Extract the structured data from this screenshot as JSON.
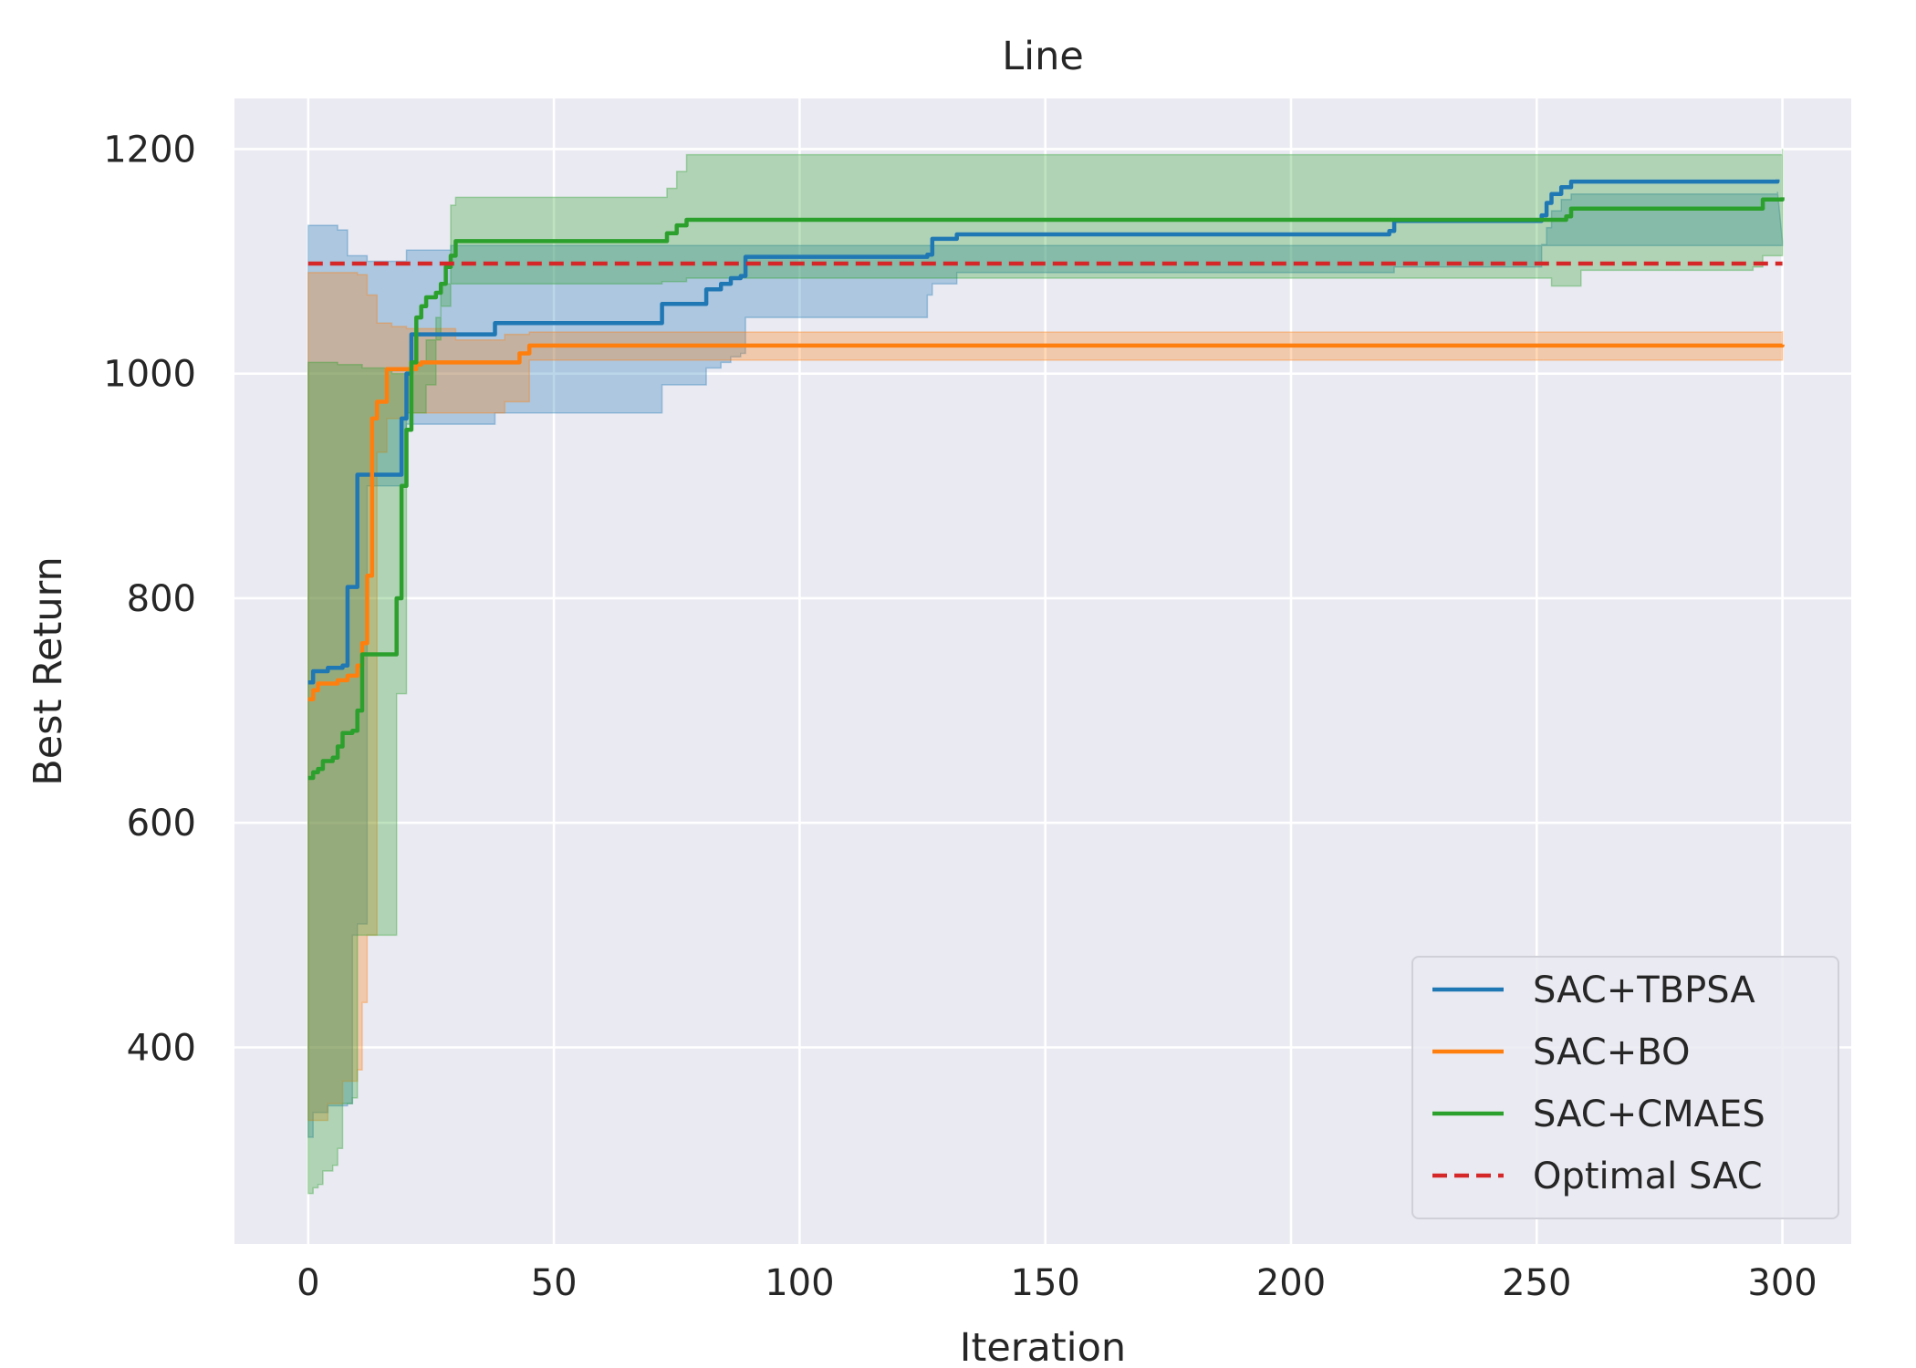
{
  "chart_data": {
    "type": "line",
    "title": "Line",
    "xlabel": "Iteration",
    "ylabel": "Best Return",
    "xlim": [
      -15,
      314
    ],
    "ylim": [
      225,
      1245
    ],
    "x_ticks": [
      0,
      50,
      100,
      150,
      200,
      250,
      300
    ],
    "y_ticks": [
      400,
      600,
      800,
      1000,
      1200
    ],
    "x_tick_labels": [
      "0",
      "50",
      "100",
      "150",
      "200",
      "250",
      "300"
    ],
    "y_tick_labels": [
      "400",
      "600",
      "800",
      "1000",
      "1200"
    ],
    "grid": true,
    "legend_position": "lower-right",
    "background_color": "#eaeaf2",
    "series": [
      {
        "name": "SAC+TBPSA",
        "color": "#1f77b4",
        "style": "solid",
        "mean": [
          [
            0,
            725
          ],
          [
            1,
            735
          ],
          [
            4,
            738
          ],
          [
            7,
            740
          ],
          [
            8,
            810
          ],
          [
            10,
            812
          ],
          [
            10,
            910
          ],
          [
            18,
            910
          ],
          [
            19,
            960
          ],
          [
            20,
            1000
          ],
          [
            21,
            1035
          ],
          [
            36,
            1035
          ],
          [
            38,
            1045
          ],
          [
            71,
            1045
          ],
          [
            72,
            1062
          ],
          [
            80,
            1062
          ],
          [
            81,
            1075
          ],
          [
            84,
            1080
          ],
          [
            86,
            1085
          ],
          [
            88,
            1087
          ],
          [
            89,
            1104
          ],
          [
            126,
            1106
          ],
          [
            127,
            1120
          ],
          [
            131,
            1120
          ],
          [
            132,
            1124
          ],
          [
            220,
            1127
          ],
          [
            221,
            1136
          ],
          [
            251,
            1141
          ],
          [
            252,
            1152
          ],
          [
            253,
            1160
          ],
          [
            255,
            1166
          ],
          [
            257,
            1171
          ],
          [
            299,
            1173
          ]
        ],
        "upper": [
          [
            0,
            1132
          ],
          [
            6,
            1128
          ],
          [
            8,
            1105
          ],
          [
            12,
            1100
          ],
          [
            18,
            1100
          ],
          [
            20,
            1110
          ],
          [
            28,
            1110
          ],
          [
            29,
            1114
          ],
          [
            300,
            1118
          ]
        ],
        "lower": [
          [
            0,
            320
          ],
          [
            1,
            342
          ],
          [
            4,
            348
          ],
          [
            8,
            350
          ],
          [
            9,
            500
          ],
          [
            10,
            510
          ],
          [
            12,
            900
          ],
          [
            20,
            955
          ],
          [
            36,
            955
          ],
          [
            38,
            965
          ],
          [
            71,
            965
          ],
          [
            72,
            990
          ],
          [
            80,
            990
          ],
          [
            81,
            1005
          ],
          [
            84,
            1010
          ],
          [
            86,
            1015
          ],
          [
            88,
            1018
          ],
          [
            89,
            1050
          ],
          [
            126,
            1070
          ],
          [
            127,
            1080
          ],
          [
            131,
            1080
          ],
          [
            132,
            1090
          ],
          [
            220,
            1090
          ],
          [
            221,
            1095
          ],
          [
            251,
            1115
          ],
          [
            252,
            1130
          ],
          [
            253,
            1145
          ],
          [
            255,
            1155
          ],
          [
            257,
            1160
          ],
          [
            299,
            1162
          ]
        ]
      },
      {
        "name": "SAC+BO",
        "color": "#ff7f0e",
        "style": "solid",
        "mean": [
          [
            0,
            710
          ],
          [
            1,
            718
          ],
          [
            2,
            724
          ],
          [
            6,
            727
          ],
          [
            8,
            731
          ],
          [
            10,
            740
          ],
          [
            11,
            760
          ],
          [
            12,
            820
          ],
          [
            13,
            960
          ],
          [
            14,
            975
          ],
          [
            16,
            1004
          ],
          [
            21,
            1004
          ],
          [
            22,
            1008
          ],
          [
            23,
            1010
          ],
          [
            42,
            1010
          ],
          [
            43,
            1018
          ],
          [
            45,
            1025
          ],
          [
            300,
            1026
          ]
        ],
        "upper": [
          [
            0,
            1090
          ],
          [
            10,
            1088
          ],
          [
            12,
            1070
          ],
          [
            14,
            1045
          ],
          [
            17,
            1042
          ],
          [
            20,
            1040
          ],
          [
            30,
            1030
          ],
          [
            40,
            1035
          ],
          [
            45,
            1037
          ],
          [
            300,
            1038
          ]
        ],
        "lower": [
          [
            0,
            335
          ],
          [
            4,
            350
          ],
          [
            7,
            370
          ],
          [
            10,
            380
          ],
          [
            11,
            440
          ],
          [
            12,
            500
          ],
          [
            14,
            930
          ],
          [
            16,
            960
          ],
          [
            20,
            965
          ],
          [
            40,
            975
          ],
          [
            45,
            1012
          ],
          [
            300,
            1014
          ]
        ]
      },
      {
        "name": "SAC+CMAES",
        "color": "#2ca02c",
        "style": "solid",
        "mean": [
          [
            0,
            640
          ],
          [
            1,
            645
          ],
          [
            2,
            648
          ],
          [
            3,
            655
          ],
          [
            5,
            658
          ],
          [
            6,
            668
          ],
          [
            7,
            680
          ],
          [
            9,
            682
          ],
          [
            10,
            700
          ],
          [
            11,
            750
          ],
          [
            17,
            750
          ],
          [
            18,
            800
          ],
          [
            19,
            900
          ],
          [
            20,
            950
          ],
          [
            21,
            1010
          ],
          [
            22,
            1050
          ],
          [
            23,
            1060
          ],
          [
            24,
            1068
          ],
          [
            26,
            1072
          ],
          [
            27,
            1080
          ],
          [
            28,
            1095
          ],
          [
            29,
            1105
          ],
          [
            30,
            1118
          ],
          [
            72,
            1118
          ],
          [
            73,
            1125
          ],
          [
            75,
            1132
          ],
          [
            77,
            1137
          ],
          [
            255,
            1137
          ],
          [
            256,
            1140
          ],
          [
            257,
            1147
          ],
          [
            294,
            1147
          ],
          [
            296,
            1155
          ],
          [
            300,
            1157
          ]
        ],
        "upper": [
          [
            0,
            1010
          ],
          [
            6,
            1008
          ],
          [
            11,
            1005
          ],
          [
            17,
            1000
          ],
          [
            18,
            1000
          ],
          [
            20,
            1005
          ],
          [
            21,
            1010
          ],
          [
            24,
            1030
          ],
          [
            27,
            1060
          ],
          [
            29,
            1150
          ],
          [
            30,
            1157
          ],
          [
            72,
            1157
          ],
          [
            73,
            1165
          ],
          [
            75,
            1180
          ],
          [
            77,
            1195
          ],
          [
            300,
            1200
          ]
        ],
        "lower": [
          [
            0,
            270
          ],
          [
            1,
            275
          ],
          [
            2,
            278
          ],
          [
            3,
            290
          ],
          [
            5,
            295
          ],
          [
            6,
            310
          ],
          [
            7,
            350
          ],
          [
            9,
            355
          ],
          [
            10,
            500
          ],
          [
            11,
            500
          ],
          [
            17,
            500
          ],
          [
            18,
            715
          ],
          [
            20,
            965
          ],
          [
            24,
            990
          ],
          [
            26,
            1050
          ],
          [
            27,
            1080
          ],
          [
            72,
            1082
          ],
          [
            77,
            1085
          ],
          [
            250,
            1085
          ],
          [
            253,
            1078
          ],
          [
            257,
            1078
          ],
          [
            259,
            1092
          ],
          [
            294,
            1095
          ],
          [
            296,
            1105
          ],
          [
            300,
            1110
          ]
        ]
      },
      {
        "name": "Optimal SAC",
        "color": "#d62728",
        "style": "dashed",
        "mean": [
          [
            0,
            1098
          ],
          [
            300,
            1098
          ]
        ]
      }
    ]
  }
}
